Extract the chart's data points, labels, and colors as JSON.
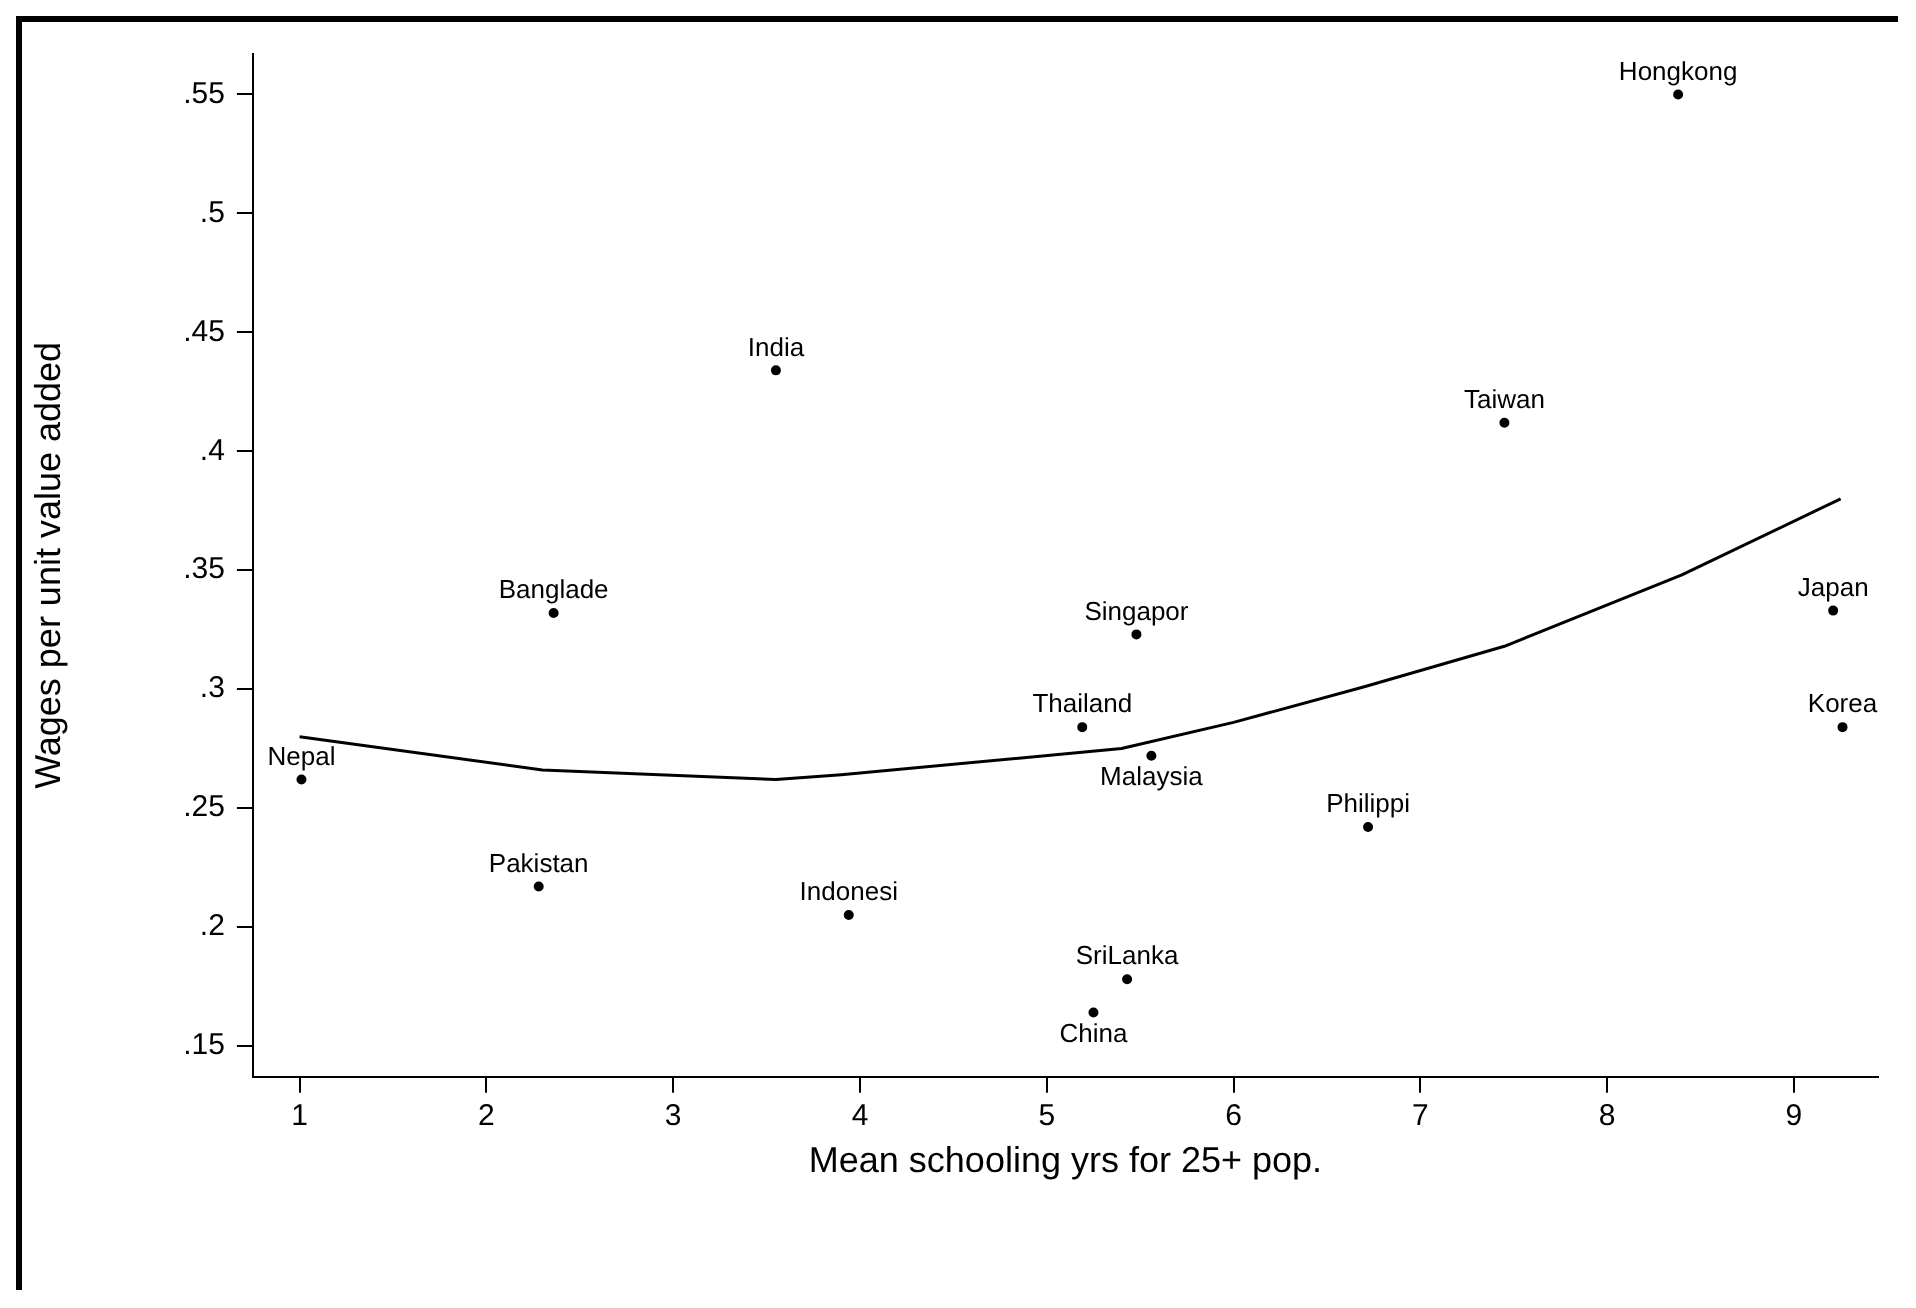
{
  "chart_data": {
    "type": "scatter",
    "xlabel": "Mean schooling yrs for 25+ pop.",
    "ylabel": "Wages per unit value added",
    "xlim": [
      0.75,
      9.45
    ],
    "ylim": [
      0.137,
      0.567
    ],
    "xticks": [
      1,
      2,
      3,
      4,
      5,
      6,
      7,
      8,
      9
    ],
    "yticks": [
      {
        "value": 0.15,
        "label": ".15"
      },
      {
        "value": 0.2,
        "label": ".2"
      },
      {
        "value": 0.25,
        "label": ".25"
      },
      {
        "value": 0.3,
        "label": ".3"
      },
      {
        "value": 0.35,
        "label": ".35"
      },
      {
        "value": 0.4,
        "label": ".4"
      },
      {
        "value": 0.45,
        "label": ".45"
      },
      {
        "value": 0.5,
        "label": ".5"
      },
      {
        "value": 0.55,
        "label": ".55"
      }
    ],
    "grid": false,
    "legend": false,
    "marker": "circle",
    "series": [
      {
        "name": "Hongkong",
        "color": "#000000",
        "x": [
          8.38
        ],
        "values": [
          0.55
        ]
      },
      {
        "name": "India",
        "color": "#000000",
        "x": [
          3.55
        ],
        "values": [
          0.434
        ]
      },
      {
        "name": "Taiwan",
        "color": "#000000",
        "x": [
          7.45
        ],
        "values": [
          0.412
        ]
      },
      {
        "name": "Banglade",
        "color": "#000000",
        "x": [
          2.36
        ],
        "values": [
          0.332
        ]
      },
      {
        "name": "Singapor",
        "color": "#000000",
        "x": [
          5.48
        ],
        "values": [
          0.323
        ]
      },
      {
        "name": "Japan",
        "color": "#000000",
        "x": [
          9.21
        ],
        "values": [
          0.333
        ]
      },
      {
        "name": "Thailand",
        "color": "#000000",
        "x": [
          5.19
        ],
        "values": [
          0.284
        ]
      },
      {
        "name": "Malaysia",
        "color": "#000000",
        "x": [
          5.56
        ],
        "values": [
          0.272
        ]
      },
      {
        "name": "Korea",
        "color": "#000000",
        "x": [
          9.26
        ],
        "values": [
          0.284
        ]
      },
      {
        "name": "Nepal",
        "color": "#000000",
        "x": [
          1.01
        ],
        "values": [
          0.262
        ]
      },
      {
        "name": "Philippi",
        "color": "#000000",
        "x": [
          6.72
        ],
        "values": [
          0.242
        ]
      },
      {
        "name": "Pakistan",
        "color": "#000000",
        "x": [
          2.28
        ],
        "values": [
          0.217
        ]
      },
      {
        "name": "Indonesi",
        "color": "#000000",
        "x": [
          3.94
        ],
        "values": [
          0.205
        ]
      },
      {
        "name": "SriLanka",
        "color": "#000000",
        "x": [
          5.43
        ],
        "values": [
          0.178
        ]
      },
      {
        "name": "China",
        "color": "#000000",
        "x": [
          5.25
        ],
        "values": [
          0.164
        ]
      },
      {
        "type": "line",
        "color": "#000000",
        "line_style": "solid",
        "marker": "none",
        "x": [
          1,
          2.3,
          3.55,
          3.9,
          5.4,
          6,
          6.7,
          7.45,
          8.4,
          9.25
        ],
        "values": [
          0.28,
          0.266,
          0.262,
          0.264,
          0.275,
          0.286,
          0.301,
          0.318,
          0.348,
          0.38
        ]
      }
    ]
  }
}
